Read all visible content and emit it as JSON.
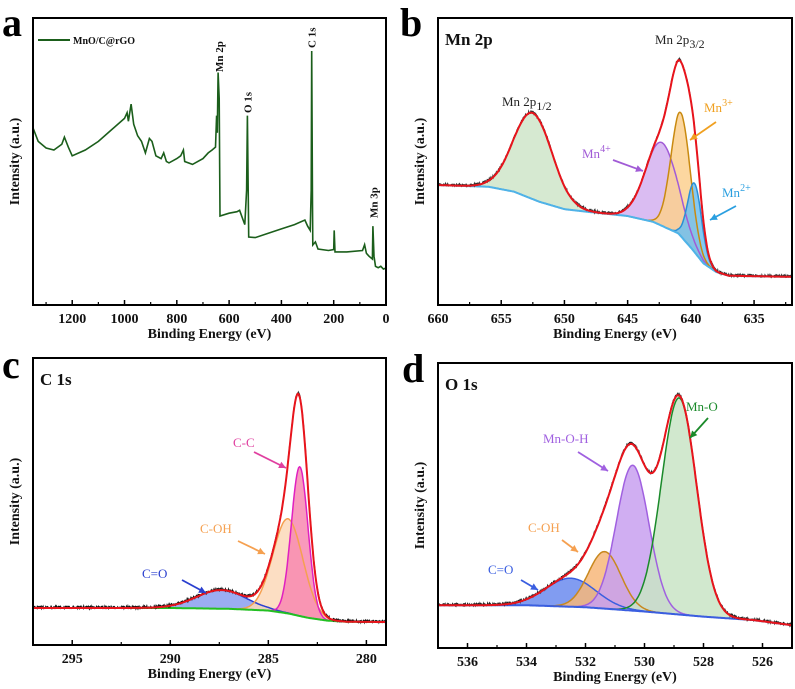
{
  "figure": {
    "panels": [
      {
        "letter": "a"
      },
      {
        "letter": "b"
      },
      {
        "letter": "c"
      },
      {
        "letter": "d"
      }
    ]
  },
  "chart_data": [
    {
      "type": "line",
      "panel": "a",
      "xlabel": "Binding Energy (eV)",
      "ylabel": "Intensity (a.u.)",
      "xlim": [
        1350,
        0
      ],
      "ylim": [
        0,
        100
      ],
      "xticks": [
        1200,
        1000,
        800,
        600,
        400,
        200,
        0
      ],
      "legend": {
        "entries": [
          "MnO/C@rGO"
        ],
        "placement": "top-left"
      },
      "series": [
        {
          "name": "MnO/C@rGO",
          "color": "#1b5e1b",
          "points": [
            [
              1350,
              61.7
            ],
            [
              1330,
              57
            ],
            [
              1300,
              54.7
            ],
            [
              1270,
              54
            ],
            [
              1240,
              56
            ],
            [
              1230,
              58.5
            ],
            [
              1215,
              55
            ],
            [
              1200,
              52
            ],
            [
              1150,
              54
            ],
            [
              1100,
              57
            ],
            [
              1050,
              61
            ],
            [
              1000,
              65
            ],
            [
              990,
              67
            ],
            [
              985,
              64
            ],
            [
              975,
              70
            ],
            [
              965,
              63
            ],
            [
              950,
              59
            ],
            [
              935,
              57
            ],
            [
              920,
              53
            ],
            [
              905,
              58
            ],
            [
              895,
              57
            ],
            [
              880,
              52
            ],
            [
              860,
              51
            ],
            [
              850,
              53
            ],
            [
              840,
              50
            ],
            [
              830,
              49.5
            ],
            [
              800,
              51
            ],
            [
              785,
              52
            ],
            [
              775,
              54
            ],
            [
              770,
              50
            ],
            [
              740,
              49
            ],
            [
              700,
              51
            ],
            [
              680,
              53
            ],
            [
              665,
              54
            ],
            [
              652,
              55
            ],
            [
              648,
              66
            ],
            [
              645,
              60
            ],
            [
              642,
              81
            ],
            [
              638,
              72
            ],
            [
              635,
              31
            ],
            [
              600,
              32
            ],
            [
              570,
              32.5
            ],
            [
              560,
              33
            ],
            [
              548,
              30
            ],
            [
              540,
              28
            ],
            [
              533,
              40
            ],
            [
              530,
              66
            ],
            [
              527,
              40
            ],
            [
              525,
              23.7
            ],
            [
              500,
              23.5
            ],
            [
              450,
              25
            ],
            [
              400,
              26.5
            ],
            [
              350,
              28
            ],
            [
              310,
              29.6
            ],
            [
              300,
              27.5
            ],
            [
              290,
              26
            ],
            [
              286,
              40
            ],
            [
              284,
              88.5
            ],
            [
              281,
              35
            ],
            [
              280,
              20.9
            ],
            [
              270,
              22
            ],
            [
              260,
              19.5
            ],
            [
              220,
              19
            ],
            [
              200,
              19.3
            ],
            [
              198,
              26
            ],
            [
              195,
              18.5
            ],
            [
              150,
              18.5
            ],
            [
              90,
              19
            ],
            [
              82,
              21
            ],
            [
              75,
              18
            ],
            [
              65,
              17
            ],
            [
              52,
              16
            ],
            [
              50,
              27.5
            ],
            [
              46,
              17
            ],
            [
              40,
              13.5
            ],
            [
              30,
              13
            ],
            [
              20,
              13.5
            ],
            [
              10,
              12.5
            ],
            [
              0,
              12.9
            ]
          ]
        }
      ],
      "annotations": [
        {
          "text": "Mn 2p",
          "x": 638
        },
        {
          "text": "O 1s",
          "x": 530
        },
        {
          "text": "C 1s",
          "x": 284
        },
        {
          "text": "Mn 3p",
          "x": 48
        }
      ]
    },
    {
      "type": "line",
      "panel": "b",
      "title": "Mn 2p",
      "xlabel": "Binding Energy (eV)",
      "ylabel": "Intensity (a.u.)",
      "xlim": [
        660,
        632
      ],
      "ylim": [
        0,
        100
      ],
      "xticks": [
        660,
        655,
        650,
        645,
        640,
        635
      ],
      "envelope_color": "#e8141c",
      "experimental_color": "#333333",
      "background": {
        "color": "#4fb3e8",
        "points": [
          [
            660,
            41.8
          ],
          [
            656,
            41.2
          ],
          [
            654,
            39.5
          ],
          [
            652,
            36
          ],
          [
            650,
            33.4
          ],
          [
            648,
            32.4
          ],
          [
            645,
            31
          ],
          [
            643,
            29
          ],
          [
            641,
            25
          ],
          [
            640,
            20
          ],
          [
            639,
            14.5
          ],
          [
            638,
            11.5
          ],
          [
            637,
            10.2
          ],
          [
            632,
            9.8
          ]
        ]
      },
      "peaks": [
        {
          "label": "Mn 2p1/2",
          "center": 652.5,
          "fwhm": 3.6,
          "height": 30,
          "line": "#1e8a3a",
          "fill": "#cfe5c9"
        },
        {
          "label": "Mn4+",
          "center": 642.3,
          "fwhm": 3.0,
          "height": 29,
          "line": "#a15bd6",
          "fill": "#d4b0f0"
        },
        {
          "label": "Mn3+",
          "center": 640.8,
          "fwhm": 1.8,
          "height": 43,
          "line": "#c98a10",
          "fill": "#fbd08f"
        },
        {
          "label": "Mn2+",
          "center": 639.7,
          "fwhm": 1.3,
          "height": 24,
          "line": "#2a8fd6",
          "fill": "#6ec0f0"
        }
      ],
      "annotations": [
        {
          "base": "Mn 2p",
          "sub": "3/2",
          "color": "#222222"
        },
        {
          "base": "Mn 2p",
          "sub": "1/2",
          "color": "#222222"
        },
        {
          "base": "Mn",
          "sup": "4+",
          "color": "#a15bd6"
        },
        {
          "base": "Mn",
          "sup": "3+",
          "color": "#f0a020"
        },
        {
          "base": "Mn",
          "sup": "2+",
          "color": "#2a9fe0"
        }
      ]
    },
    {
      "type": "line",
      "panel": "c",
      "title": "C 1s",
      "xlabel": "Binding Energy (eV)",
      "ylabel": "Intensity (a.u.)",
      "xlim": [
        297,
        279
      ],
      "ylim": [
        0,
        100
      ],
      "xticks": [
        295,
        290,
        285,
        280
      ],
      "envelope_color": "#e8141c",
      "experimental_color": "#111111",
      "background": {
        "color": "#22c022",
        "points": [
          [
            297,
            12.9
          ],
          [
            290,
            12.9
          ],
          [
            287,
            12.6
          ],
          [
            285,
            12
          ],
          [
            284,
            11
          ],
          [
            283,
            9.5
          ],
          [
            282,
            8.5
          ],
          [
            281,
            8.1
          ],
          [
            279,
            8
          ]
        ]
      },
      "peaks": [
        {
          "label": "C=O",
          "center": 287.4,
          "fwhm": 3.0,
          "height": 6.5,
          "line": "#2a3fcf",
          "fill": "#8a9ff0"
        },
        {
          "label": "C-OH",
          "center": 284.0,
          "fwhm": 1.8,
          "height": 33,
          "line": "#f5a050",
          "fill": "#fcd8b8"
        },
        {
          "label": "C-C",
          "center": 283.4,
          "fwhm": 1.0,
          "height": 52,
          "line": "#e020c0",
          "fill": "#f888b0"
        }
      ],
      "annotations": [
        {
          "base": "C-C",
          "color": "#e040a0"
        },
        {
          "base": "C-OH",
          "color": "#f5a050"
        },
        {
          "base": "C=O",
          "color": "#2a3fcf"
        }
      ]
    },
    {
      "type": "line",
      "panel": "d",
      "title": "O 1s",
      "xlabel": "Binding Energy (eV)",
      "ylabel": "Intensity (a.u.)",
      "xlim": [
        537,
        525
      ],
      "ylim": [
        0,
        100
      ],
      "xticks": [
        536,
        534,
        532,
        530,
        528,
        526
      ],
      "envelope_color": "#e8141c",
      "experimental_color": "#222222",
      "background": {
        "color": "#3a5ee0",
        "points": [
          [
            537,
            15
          ],
          [
            534,
            15
          ],
          [
            532,
            14.3
          ],
          [
            530,
            12.8
          ],
          [
            528,
            11
          ],
          [
            526.3,
            9.8
          ],
          [
            525,
            8
          ]
        ]
      },
      "peaks": [
        {
          "label": "C=O",
          "center": 532.5,
          "fwhm": 2.0,
          "height": 10,
          "line": "#3a5ee0",
          "fill": "#6b8bef"
        },
        {
          "label": "C-OH",
          "center": 531.35,
          "fwhm": 1.3,
          "height": 20,
          "line": "#c8881e",
          "fill": "#f7b77a"
        },
        {
          "label": "Mn-O-H",
          "center": 530.4,
          "fwhm": 1.3,
          "height": 51,
          "line": "#a060e0",
          "fill": "#c8a0f0"
        },
        {
          "label": "Mn-O",
          "center": 528.83,
          "fwhm": 1.4,
          "height": 76,
          "line": "#1a8a2a",
          "fill": "#c9e4c5"
        }
      ],
      "annotations": [
        {
          "base": "Mn-O",
          "color": "#1a8a2a"
        },
        {
          "base": "Mn-O-H",
          "color": "#a060e0"
        },
        {
          "base": "C-OH",
          "color": "#f5a050"
        },
        {
          "base": "C=O",
          "color": "#3a5ee0"
        }
      ]
    }
  ]
}
